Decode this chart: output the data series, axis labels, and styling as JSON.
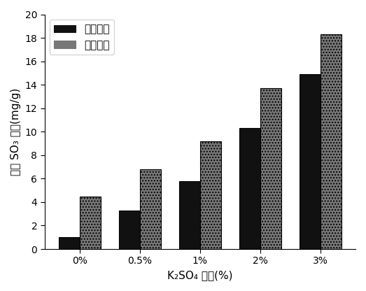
{
  "categories": [
    "0%",
    "0.5%",
    "1%",
    "2%",
    "3%"
  ],
  "clinker_values": [
    1.0,
    3.3,
    5.8,
    10.3,
    14.9
  ],
  "cement_values": [
    4.5,
    6.8,
    9.2,
    13.7,
    18.3
  ],
  "clinker_color": "#111111",
  "cement_color": "#777777",
  "clinker_label": "熟料样品",
  "cement_label": "水泥样品",
  "ylabel": "溶出 SO₃ 含量(mg/g)",
  "xlabel": "K₂SO₄ 渗量(%)",
  "ylim": [
    0,
    20
  ],
  "yticks": [
    0,
    2,
    4,
    6,
    8,
    10,
    12,
    14,
    16,
    18,
    20
  ],
  "bar_width": 0.35,
  "figure_width": 5.23,
  "figure_height": 4.16,
  "dpi": 100,
  "background_color": "#ffffff",
  "cement_hatch": "....",
  "legend_fontsize": 11,
  "axis_fontsize": 11,
  "tick_fontsize": 10
}
